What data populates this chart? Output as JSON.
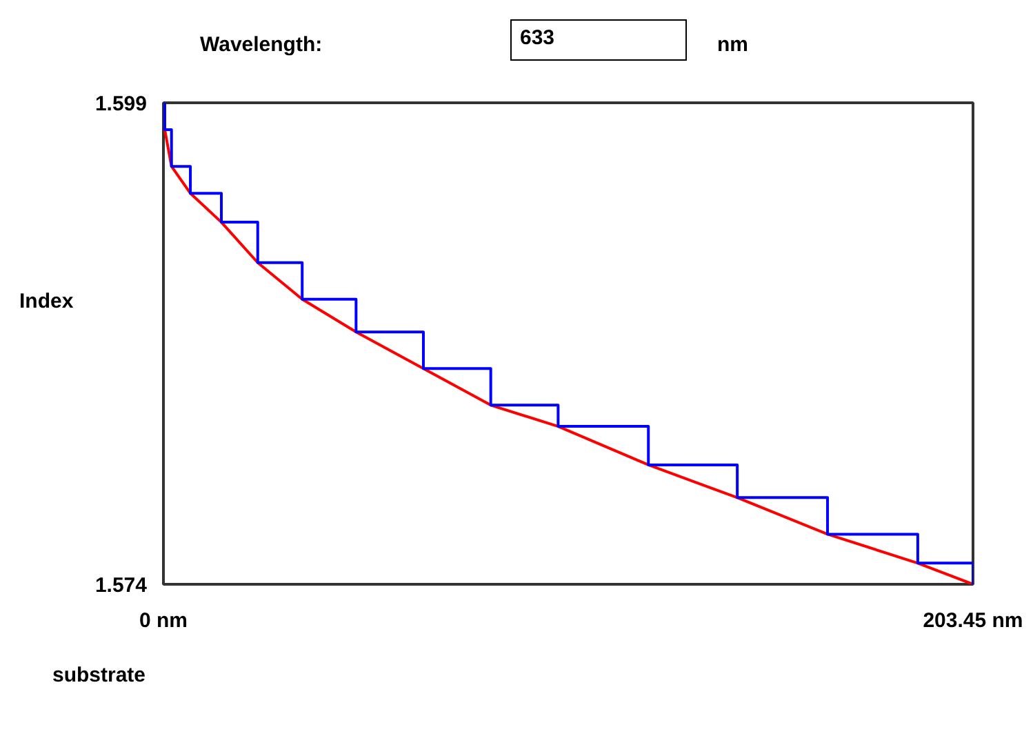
{
  "chart_data": {
    "type": "line",
    "ylabel": "Index",
    "annotations": [
      "Wavelength:",
      "633",
      "nm",
      "substrate"
    ],
    "x": [
      0,
      0.34,
      2.03,
      6.77,
      14.56,
      23.7,
      34.87,
      48.41,
      65.33,
      82.26,
      99.19,
      121.87,
      144.21,
      166.89,
      189.57,
      203.45
    ],
    "series": [
      {
        "color": "#ff0000",
        "values": [
          1.599,
          1.5976,
          1.5957,
          1.5943,
          1.5928,
          1.5907,
          1.5888,
          1.5871,
          1.5852,
          1.5833,
          1.5822,
          1.5802,
          1.5785,
          1.5766,
          1.5751,
          1.574
        ]
      },
      {
        "type": "step",
        "color": "#0000ff",
        "values": [
          1.599,
          1.5976,
          1.5957,
          1.5943,
          1.5928,
          1.5907,
          1.5888,
          1.5871,
          1.5852,
          1.5833,
          1.5822,
          1.5802,
          1.5785,
          1.5766,
          1.5751,
          1.574
        ]
      }
    ],
    "xlim": [
      0,
      203.45
    ],
    "ylim": [
      1.574,
      1.599
    ],
    "xticks": [
      {
        "value": 0,
        "label": "0 nm"
      },
      {
        "value": 203.45,
        "label": "203.45 nm"
      }
    ],
    "yticks": [
      1.599,
      1.574
    ]
  }
}
